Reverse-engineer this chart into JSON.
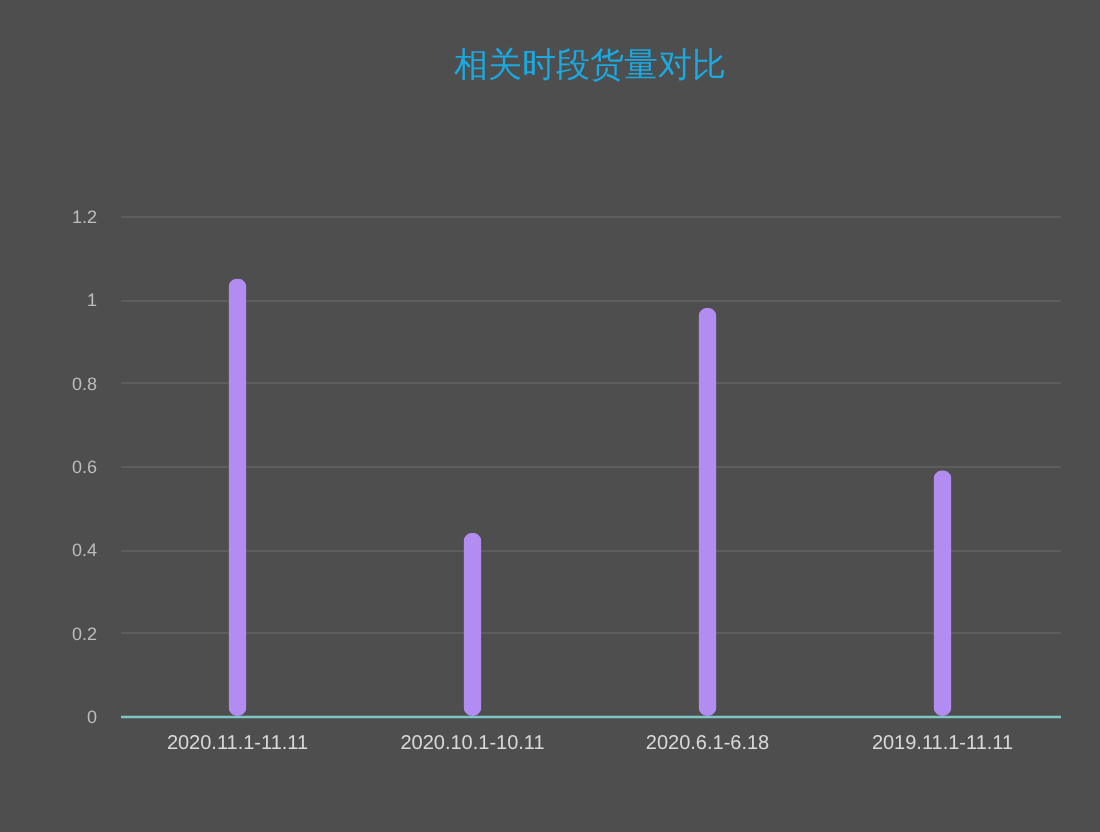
{
  "chart_data": {
    "type": "bar",
    "title": "相关时段货量对比",
    "categories": [
      "2020.11.1-11.11",
      "2020.10.1-10.11",
      "2020.6.1-6.18",
      "2019.11.1-11.11"
    ],
    "values": [
      1.05,
      0.44,
      0.98,
      0.59
    ],
    "color": "#b38cf2",
    "ylim": [
      0,
      1.2
    ],
    "yticks": [
      0,
      0.2,
      0.4,
      0.6,
      0.8,
      1,
      1.2
    ],
    "grid": "y"
  }
}
